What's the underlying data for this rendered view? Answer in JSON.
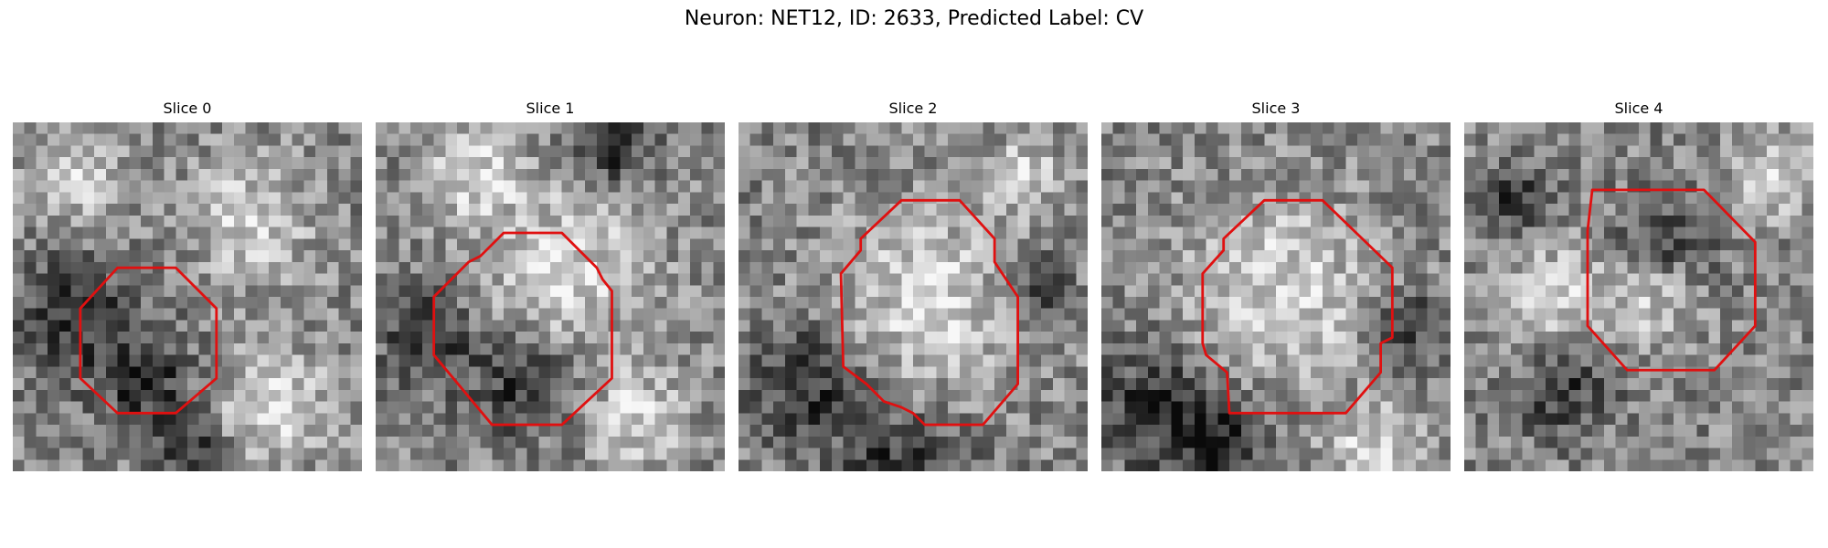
{
  "figure": {
    "title": "Neuron: NET12, ID: 2633, Predicted Label: CV"
  },
  "style": {
    "contour_color": "#e01010",
    "background": "#ffffff",
    "colormap": "gray"
  },
  "panels": [
    {
      "label": "Slice 0"
    },
    {
      "label": "Slice 1"
    },
    {
      "label": "Slice 2"
    },
    {
      "label": "Slice 3"
    },
    {
      "label": "Slice 4"
    }
  ]
}
